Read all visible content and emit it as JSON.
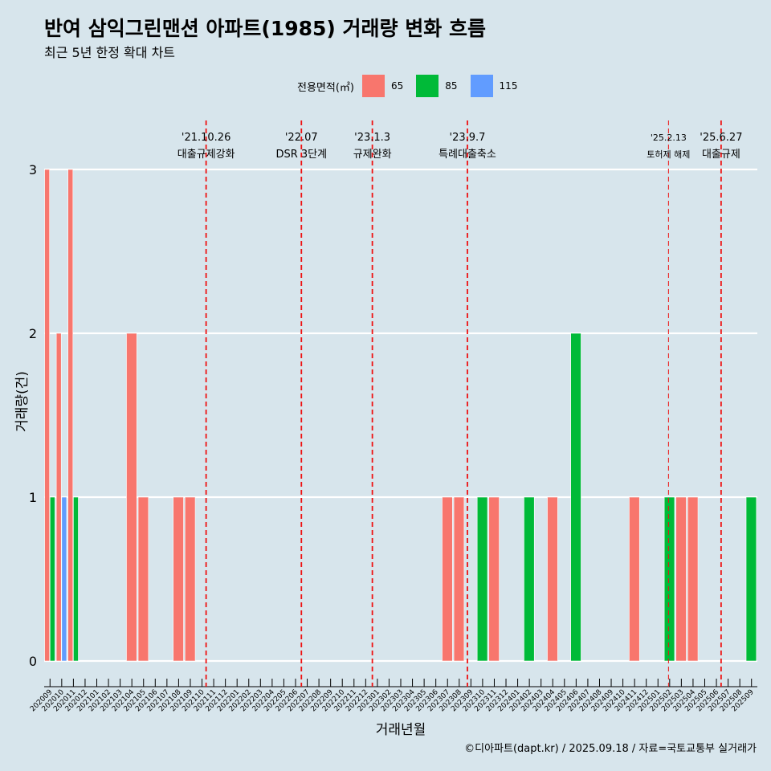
{
  "title": "반여 삼익그린맨션 아파트(1985) 거래량 변화 흐름",
  "subtitle": "최근 5년 한정 확대 차트",
  "caption": "©디아파트(dapt.kr) / 2025.09.18 / 자료=국토교통부 실거래가",
  "legend": {
    "title": "전용면적(㎡)",
    "items": [
      {
        "label": "65",
        "color": "#f8766d"
      },
      {
        "label": "85",
        "color": "#00ba38"
      },
      {
        "label": "115",
        "color": "#619cff"
      }
    ]
  },
  "chart_data": {
    "type": "bar",
    "xlabel": "거래년월",
    "ylabel": "거래량(건)",
    "ylim": [
      0,
      3
    ],
    "yticks": [
      0,
      1,
      2,
      3
    ],
    "categories": [
      "202009",
      "202010",
      "202011",
      "202012",
      "202101",
      "202102",
      "202103",
      "202104",
      "202105",
      "202106",
      "202107",
      "202108",
      "202109",
      "202110",
      "202111",
      "202112",
      "202201",
      "202202",
      "202203",
      "202204",
      "202205",
      "202206",
      "202207",
      "202208",
      "202209",
      "202210",
      "202211",
      "202212",
      "202301",
      "202302",
      "202303",
      "202304",
      "202305",
      "202306",
      "202307",
      "202308",
      "202309",
      "202310",
      "202311",
      "202312",
      "202401",
      "202402",
      "202403",
      "202404",
      "202405",
      "202406",
      "202407",
      "202408",
      "202409",
      "202410",
      "202411",
      "202412",
      "202501",
      "202502",
      "202503",
      "202504",
      "202505",
      "202506",
      "202507",
      "202508",
      "202509"
    ],
    "series": [
      {
        "name": "65",
        "color": "#f8766d",
        "values": [
          3,
          2,
          3,
          0,
          0,
          0,
          0,
          2,
          1,
          0,
          0,
          1,
          1,
          0,
          0,
          0,
          0,
          0,
          0,
          0,
          0,
          0,
          0,
          0,
          0,
          0,
          0,
          0,
          0,
          0,
          0,
          0,
          0,
          0,
          1,
          1,
          0,
          0,
          1,
          0,
          0,
          0,
          0,
          1,
          0,
          0,
          0,
          0,
          0,
          0,
          1,
          0,
          0,
          0,
          1,
          1,
          0,
          0,
          0,
          0,
          0
        ]
      },
      {
        "name": "85",
        "color": "#00ba38",
        "values": [
          1,
          0,
          1,
          0,
          0,
          0,
          0,
          0,
          0,
          0,
          0,
          0,
          0,
          0,
          0,
          0,
          0,
          0,
          0,
          0,
          0,
          0,
          0,
          0,
          0,
          0,
          0,
          0,
          0,
          0,
          0,
          0,
          0,
          0,
          0,
          0,
          0,
          1,
          0,
          0,
          0,
          1,
          0,
          0,
          0,
          2,
          0,
          0,
          0,
          0,
          0,
          0,
          0,
          1,
          0,
          0,
          0,
          0,
          0,
          0,
          1
        ]
      },
      {
        "name": "115",
        "color": "#619cff",
        "values": [
          0,
          1,
          0,
          0,
          0,
          0,
          0,
          0,
          0,
          0,
          0,
          0,
          0,
          0,
          0,
          0,
          0,
          0,
          0,
          0,
          0,
          0,
          0,
          0,
          0,
          0,
          0,
          0,
          0,
          0,
          0,
          0,
          0,
          0,
          0,
          0,
          0,
          0,
          0,
          0,
          0,
          0,
          0,
          0,
          0,
          0,
          0,
          0,
          0,
          0,
          0,
          0,
          0,
          0,
          0,
          0,
          0,
          0,
          0,
          0,
          0
        ]
      }
    ],
    "annotations": [
      {
        "date": "'21.10.26",
        "label": "대출규제강화",
        "month": "202110",
        "offset": 0.85,
        "small": false
      },
      {
        "date": "'22.07",
        "label": "DSR 3단계",
        "month": "202207",
        "offset": 0.0,
        "small": false
      },
      {
        "date": "'23.1.3",
        "label": "규제완화",
        "month": "202301",
        "offset": 0.07,
        "small": false
      },
      {
        "date": "'23.9.7",
        "label": "특례대출축소",
        "month": "202309",
        "offset": 0.2,
        "small": false
      },
      {
        "date": "'25.2.13",
        "label": "토허제 해제",
        "month": "202502",
        "offset": 0.4,
        "small": true
      },
      {
        "date": "'25.6.27",
        "label": "대출규제",
        "month": "202506",
        "offset": 0.9,
        "small": false
      }
    ]
  }
}
